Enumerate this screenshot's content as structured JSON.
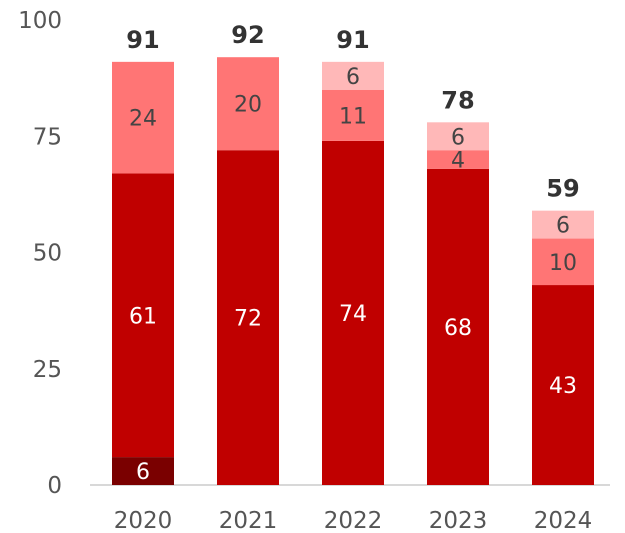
{
  "chart_data": {
    "type": "bar",
    "stacked": true,
    "categories": [
      "2020",
      "2021",
      "2022",
      "2023",
      "2024"
    ],
    "ylim": [
      0,
      100
    ],
    "yticks": [
      0,
      25,
      50,
      75,
      100
    ],
    "series": [
      {
        "values": [
          6,
          0,
          0,
          0,
          0
        ],
        "color": "#7a0000",
        "label_color": "#ffffff"
      },
      {
        "values": [
          61,
          72,
          74,
          68,
          43
        ],
        "color": "#c00000",
        "label_color": "#ffffff"
      },
      {
        "values": [
          24,
          20,
          11,
          4,
          10
        ],
        "color": "#ff7575",
        "label_color": "#444444"
      },
      {
        "values": [
          0,
          0,
          6,
          6,
          6
        ],
        "color": "#ffb8b8",
        "label_color": "#444444"
      }
    ],
    "totals": [
      91,
      92,
      91,
      78,
      59
    ]
  }
}
